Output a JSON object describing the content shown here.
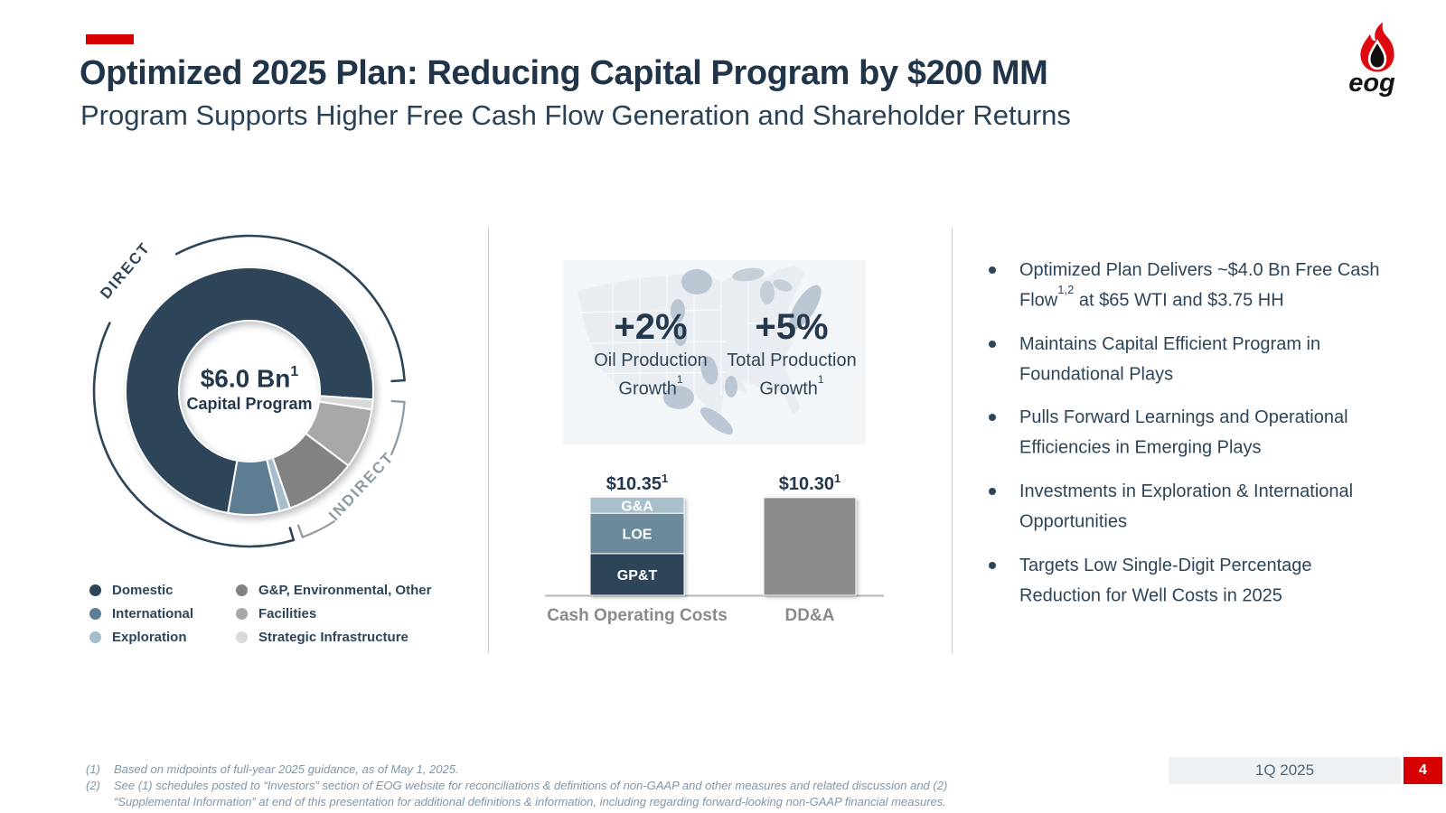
{
  "header": {
    "title": "Optimized 2025 Plan: Reducing Capital Program by $200 MM",
    "subtitle": "Program Supports Higher Free Cash Flow Generation and Shareholder Returns",
    "logo_text": "eog"
  },
  "chart_data": [
    {
      "type": "donut",
      "center": {
        "value": "$6.0 Bn",
        "value_sup": "1",
        "label": "Capital Program"
      },
      "note": "segment shares estimated from graphic, % of $6.0 Bn capital program",
      "start_angle_deg": 190,
      "segments": [
        {
          "name": "Domestic",
          "pct": 73.3,
          "color": "#2e4458"
        },
        {
          "name": "Strategic Infrastructure",
          "pct": 1.3,
          "color": "#d9d9d9"
        },
        {
          "name": "Facilities",
          "pct": 7.9,
          "color": "#a8a8a8"
        },
        {
          "name": "G&P, Environmental, Other",
          "pct": 9.4,
          "color": "#828282"
        },
        {
          "name": "Exploration",
          "pct": 1.4,
          "color": "#a6bdcc"
        },
        {
          "name": "International",
          "pct": 6.7,
          "color": "#5e7d92"
        }
      ],
      "legend": [
        {
          "label": "Domestic",
          "color": "#2e4458"
        },
        {
          "label": "International",
          "color": "#5e7d92"
        },
        {
          "label": "Exploration",
          "color": "#a6bdcc"
        },
        {
          "label": "G&P, Environmental, Other",
          "color": "#828282"
        },
        {
          "label": "Facilities",
          "color": "#a8a8a8"
        },
        {
          "label": "Strategic Infrastructure",
          "color": "#d9d9d9"
        }
      ],
      "outer_arcs": [
        {
          "label": "DIRECT",
          "color": "#2e4559",
          "from_deg": 163.5,
          "to_deg": 446,
          "gap_from_deg": 296,
          "gap_to_deg": 332
        },
        {
          "label": "INDIRECT",
          "color": "#8d99a3",
          "from_deg": 94,
          "to_deg": 160,
          "gap_from_deg": 114,
          "gap_to_deg": 147
        }
      ]
    },
    {
      "type": "stat-callout",
      "items": [
        {
          "value": "+2%",
          "label": "Oil Production Growth",
          "label_sup": "1"
        },
        {
          "value": "+5%",
          "label": "Total Production Growth",
          "label_sup": "1"
        }
      ]
    },
    {
      "type": "stacked-bar",
      "unit": "$ per Boe",
      "categories": [
        "Cash Operating Costs",
        "DD&A"
      ],
      "bars": [
        {
          "category": "Cash Operating Costs",
          "total_label": "$10.35",
          "label_sup": "1",
          "total": 10.35,
          "segments": [
            {
              "name": "GP&T",
              "value": 4.4,
              "color": "#2e4458"
            },
            {
              "name": "LOE",
              "value": 4.25,
              "color": "#6d8a9c"
            },
            {
              "name": "G&A",
              "value": 1.7,
              "color": "#a9bfcc"
            }
          ]
        },
        {
          "category": "DD&A",
          "total_label": "$10.30",
          "label_sup": "1",
          "total": 10.3,
          "segments": [
            {
              "name": "DD&A",
              "value": 10.3,
              "color": "#8c8c8c"
            }
          ]
        }
      ]
    }
  ],
  "bullets": [
    {
      "pre": "Optimized Plan Delivers ~$4.0 Bn Free Cash Flow",
      "sup": "1,2",
      "post": " at $65 WTI and $3.75 HH"
    },
    {
      "pre": "Maintains Capital Efficient Program in Foundational Plays",
      "sup": "",
      "post": ""
    },
    {
      "pre": "Pulls Forward Learnings and Operational Efficiencies in Emerging Plays",
      "sup": "",
      "post": ""
    },
    {
      "pre": "Investments in Exploration & International Opportunities",
      "sup": "",
      "post": ""
    },
    {
      "pre": "Targets Low Single-Digit Percentage Reduction for Well Costs in 2025",
      "sup": "",
      "post": ""
    }
  ],
  "footnotes": [
    {
      "num": "(1)",
      "text": "Based on midpoints of full-year 2025 guidance, as of May 1, 2025."
    },
    {
      "num": "(2)",
      "text": "See (1) schedules posted to “Investors” section of EOG website for reconciliations & definitions of non-GAAP and other measures and related discussion and (2) “Supplemental Information” at end of this presentation for additional definitions & information, including regarding forward-looking non-GAAP financial measures."
    }
  ],
  "footer": {
    "period": "1Q 2025",
    "page": "4"
  }
}
